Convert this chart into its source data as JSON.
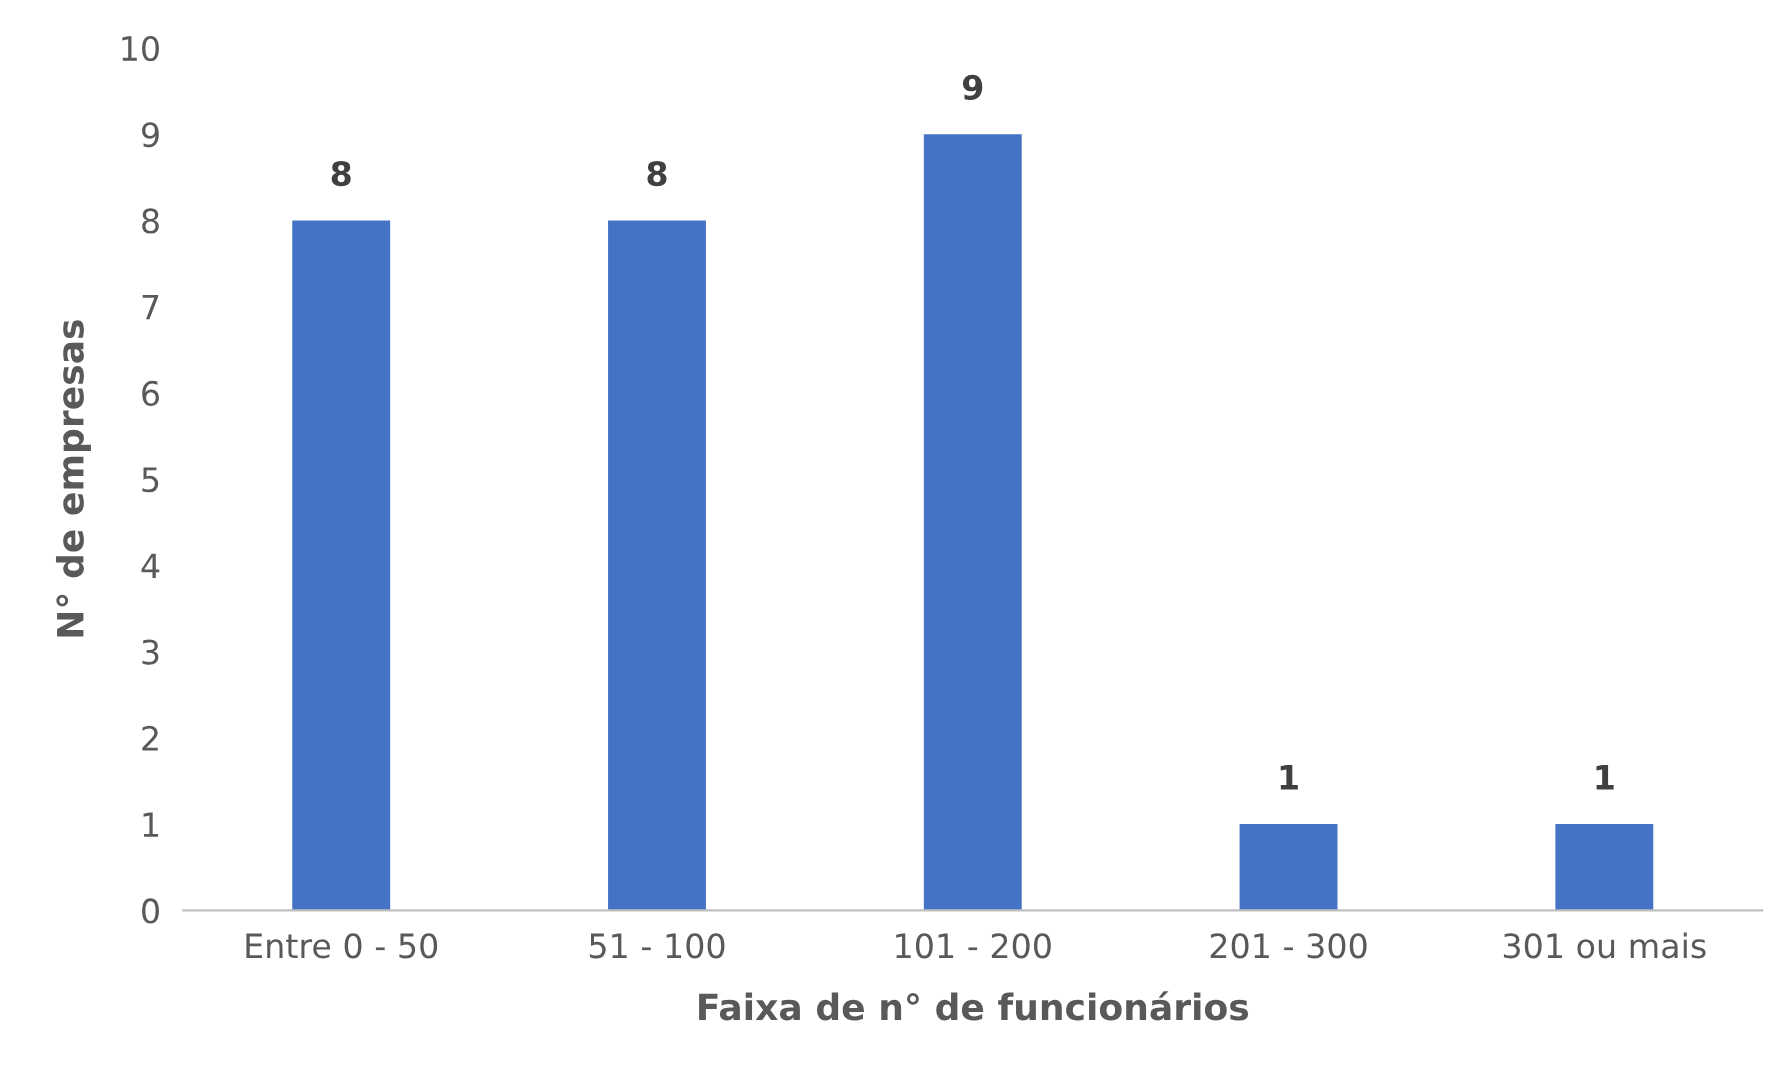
{
  "chart_data": {
    "type": "bar",
    "xlabel": "Faixa de n° de funcionários",
    "ylabel": "N° de empresas",
    "categories": [
      "Entre 0 - 50",
      "51 - 100",
      "101 - 200",
      "201 - 300",
      "301 ou mais"
    ],
    "values": [
      8,
      8,
      9,
      1,
      1
    ],
    "color": "#4472c4",
    "ylim": [
      0,
      10
    ],
    "yticks": [
      0,
      1,
      2,
      3,
      4,
      5,
      6,
      7,
      8,
      9,
      10
    ],
    "grid": false,
    "data_labels": true
  }
}
